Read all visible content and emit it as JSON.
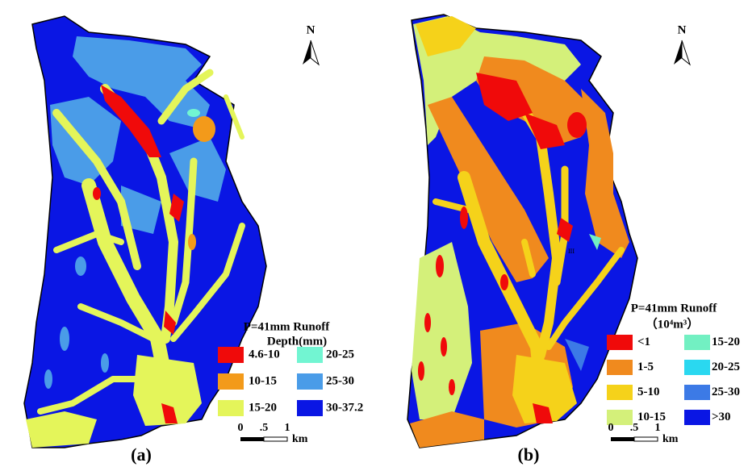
{
  "panels": [
    {
      "label": "(a)",
      "north": "N",
      "legend": {
        "title": [
          "P=41mm Runoff",
          "Depth(mm)"
        ],
        "items": [
          {
            "label": "4.6-10",
            "color": "#f00a0a"
          },
          {
            "label": "10-15",
            "color": "#f39a1a"
          },
          {
            "label": "15-20",
            "color": "#e4f55a"
          },
          {
            "label": "20-25",
            "color": "#72f5d2"
          },
          {
            "label": "25-30",
            "color": "#4a9ce8"
          },
          {
            "label": "30-37.2",
            "color": "#0a16e4"
          }
        ]
      },
      "scale": {
        "ticks": [
          "0",
          ".5",
          "1"
        ],
        "unit": "km"
      }
    },
    {
      "label": "(b)",
      "north": "N",
      "note": "III",
      "legend": {
        "title": [
          "P=41mm Runoff",
          "（10⁴m³）"
        ],
        "items": [
          {
            "label": "<1",
            "color": "#f00a0a"
          },
          {
            "label": "1-5",
            "color": "#f08a1e"
          },
          {
            "label": "5-10",
            "color": "#f5d21a"
          },
          {
            "label": "10-15",
            "color": "#d4f07a"
          },
          {
            "label": "15-20",
            "color": "#72f0c2"
          },
          {
            "label": "20-25",
            "color": "#2ad8f0"
          },
          {
            "label": "25-30",
            "color": "#3c7ae6"
          },
          {
            "label": ">30",
            "color": "#0a16e4"
          }
        ]
      },
      "scale": {
        "ticks": [
          "0",
          ".5",
          "1"
        ],
        "unit": "km"
      }
    }
  ]
}
